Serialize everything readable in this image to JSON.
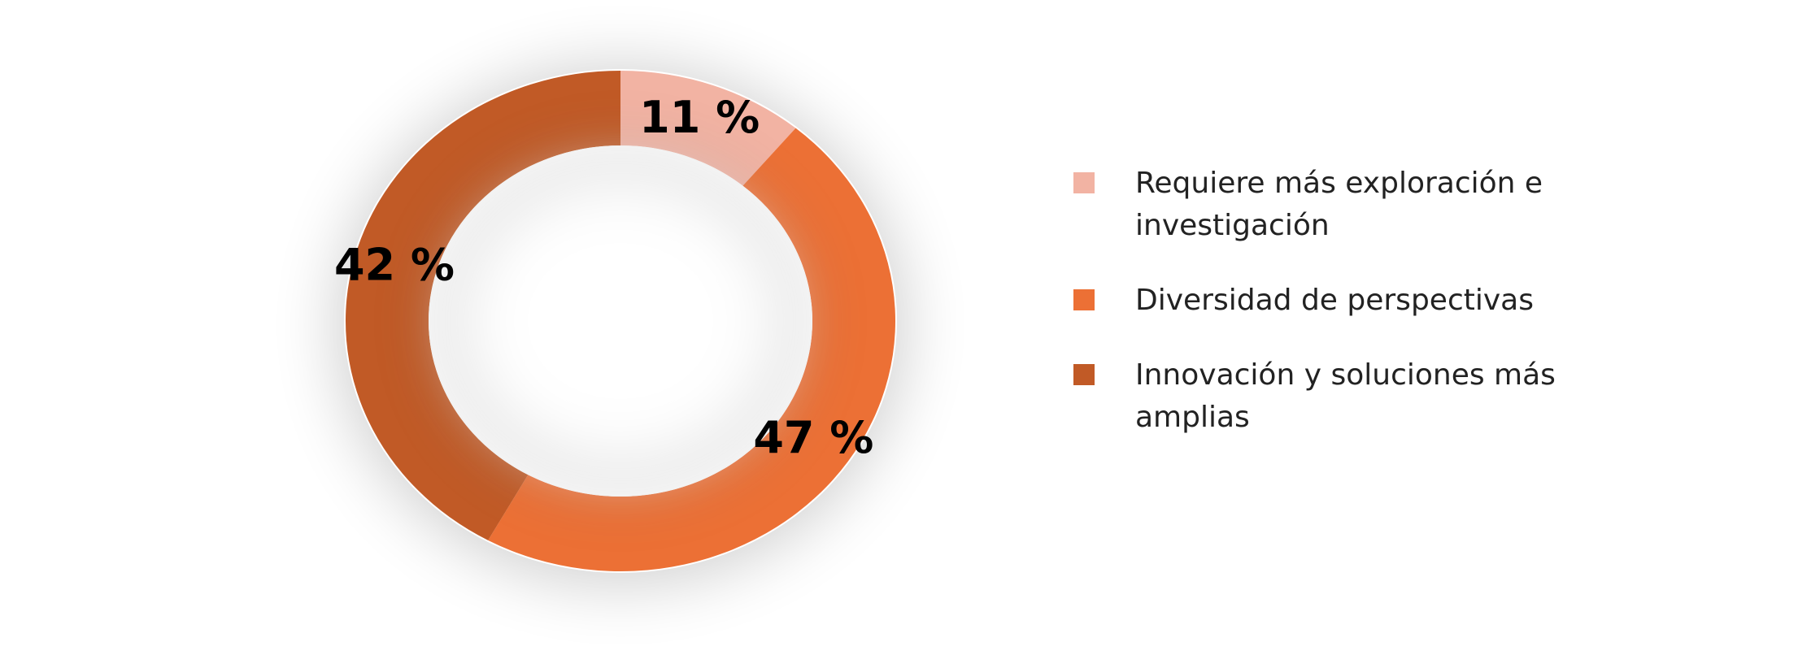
{
  "chart_data": {
    "type": "donut",
    "categories": [
      "Requiere más exploración e investigación",
      "Diversidad de perspectivas",
      "Innovación y soluciones más amplias"
    ],
    "values": [
      11,
      47,
      42
    ],
    "value_labels": [
      "11 %",
      "47 %",
      "42 %"
    ],
    "colors": [
      "#f2b3a3",
      "#ec7035",
      "#c15a26"
    ],
    "legend": "right"
  }
}
